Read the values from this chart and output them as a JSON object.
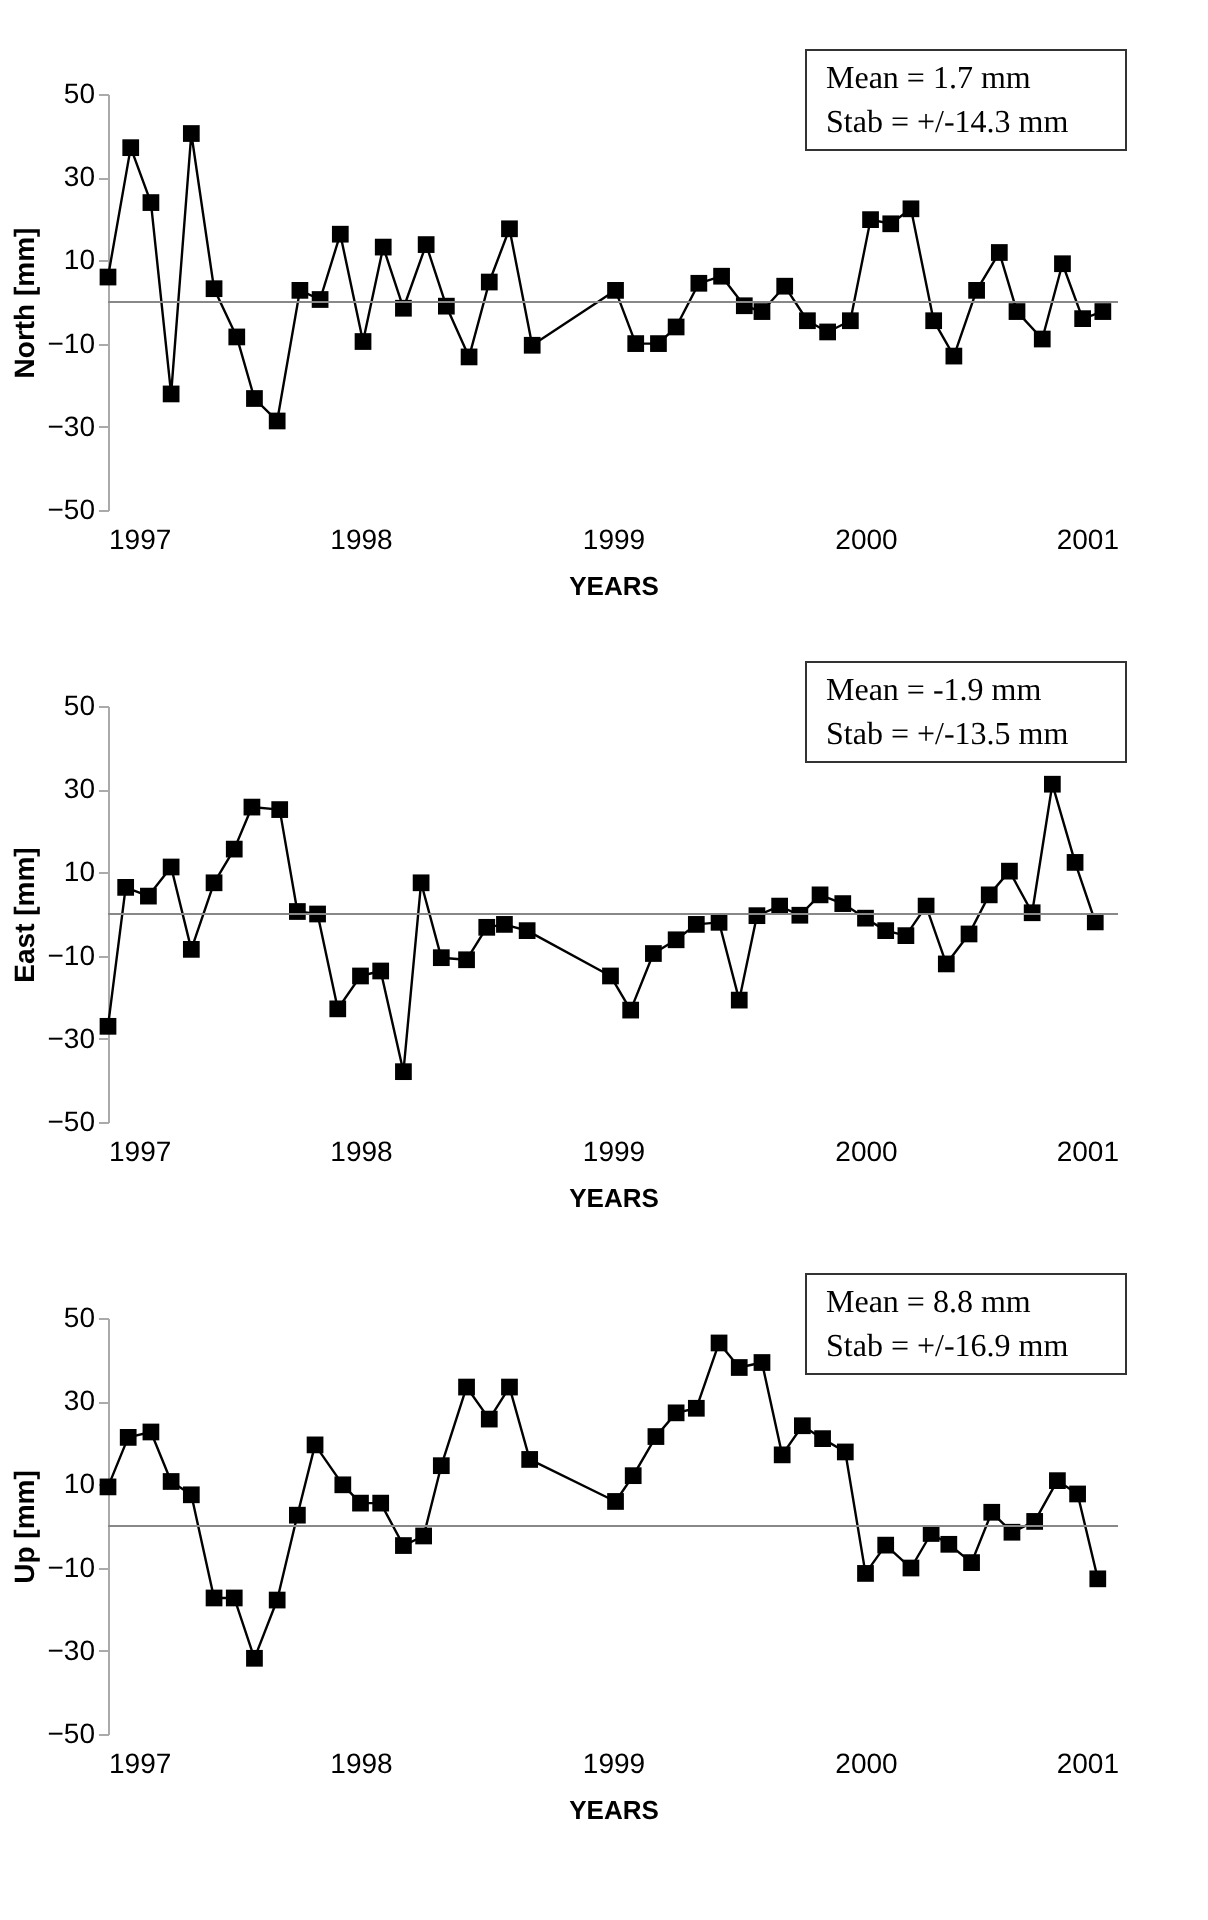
{
  "chart_data": [
    {
      "type": "line",
      "ylabel": "North [mm]",
      "xlabel": "YEARS",
      "xlim": [
        1997,
        2001
      ],
      "xticks": [
        1997,
        1998,
        1999,
        2000,
        2001
      ],
      "ylim": [
        -50,
        50
      ],
      "yticks": [
        -50,
        -30,
        -10,
        10,
        30,
        50
      ],
      "grid": false,
      "marker": "square",
      "line_style": "solid",
      "ref_lines": [
        {
          "axis": "y",
          "value": 0
        }
      ],
      "annotations": [
        "Mean = 1.7 mm",
        "Stab = +/-14.3 mm"
      ],
      "series": [
        {
          "color": "#000000",
          "x": [
            1997.0,
            1997.09,
            1997.17,
            1997.25,
            1997.33,
            1997.42,
            1997.51,
            1997.58,
            1997.67,
            1997.76,
            1997.84,
            1997.92,
            1998.01,
            1998.09,
            1998.17,
            1998.26,
            1998.34,
            1998.43,
            1998.51,
            1998.59,
            1998.68,
            1999.01,
            1999.09,
            1999.18,
            1999.25,
            1999.34,
            1999.43,
            1999.52,
            1999.59,
            1999.68,
            1999.77,
            1999.85,
            1999.94,
            2000.02,
            2000.1,
            2000.18,
            2000.27,
            2000.35,
            2000.44,
            2000.53,
            2000.6,
            2000.7,
            2000.78,
            2000.86,
            2000.94
          ],
          "values": [
            6.0,
            37.1,
            23.9,
            -22.1,
            40.5,
            3.2,
            -8.4,
            -23.2,
            -28.6,
            2.8,
            0.6,
            16.3,
            -9.5,
            13.2,
            -1.5,
            13.8,
            -1.0,
            -13.2,
            4.8,
            17.6,
            -10.4,
            2.8,
            -10.0,
            -10.0,
            -6.0,
            4.5,
            6.2,
            -0.9,
            -2.3,
            3.8,
            -4.5,
            -7.2,
            -4.5,
            19.8,
            18.8,
            22.4,
            -4.5,
            -13.0,
            2.8,
            11.9,
            -2.3,
            -8.9,
            9.2,
            -4.0,
            -2.3
          ]
        }
      ]
    },
    {
      "type": "line",
      "ylabel": "East [mm]",
      "xlabel": "YEARS",
      "xlim": [
        1997,
        2001
      ],
      "xticks": [
        1997,
        1998,
        1999,
        2000,
        2001
      ],
      "ylim": [
        -50,
        50
      ],
      "yticks": [
        -50,
        -30,
        -10,
        10,
        30,
        50
      ],
      "grid": false,
      "marker": "square",
      "line_style": "solid",
      "ref_lines": [
        {
          "axis": "y",
          "value": 0
        }
      ],
      "annotations": [
        "Mean = -1.9 mm",
        "Stab = +/-13.5 mm"
      ],
      "series": [
        {
          "color": "#000000",
          "x": [
            1997.0,
            1997.07,
            1997.16,
            1997.25,
            1997.33,
            1997.42,
            1997.5,
            1997.57,
            1997.68,
            1997.75,
            1997.83,
            1997.91,
            1998.0,
            1998.08,
            1998.17,
            1998.24,
            1998.32,
            1998.42,
            1998.5,
            1998.57,
            1998.66,
            1998.99,
            1999.07,
            1999.16,
            1999.25,
            1999.33,
            1999.42,
            1999.5,
            1999.57,
            1999.66,
            1999.74,
            1999.82,
            1999.91,
            2000.0,
            2000.08,
            2000.16,
            2000.24,
            2000.32,
            2000.41,
            2000.49,
            2000.57,
            2000.66,
            2000.74,
            2000.83,
            2000.91
          ],
          "values": [
            -27.0,
            6.4,
            4.3,
            11.3,
            -8.5,
            7.5,
            15.6,
            25.7,
            25.1,
            0.6,
            0.0,
            -22.8,
            -14.9,
            -13.7,
            -37.9,
            7.5,
            -10.5,
            -11.0,
            -3.2,
            -2.5,
            -4.0,
            -14.9,
            -23.1,
            -9.5,
            -6.2,
            -2.5,
            -2.0,
            -20.7,
            -0.4,
            1.9,
            -0.3,
            4.6,
            2.5,
            -1.0,
            -4.0,
            -5.2,
            1.9,
            -12.0,
            -4.8,
            4.6,
            10.3,
            0.3,
            31.2,
            12.4,
            -1.9
          ]
        }
      ]
    },
    {
      "type": "line",
      "ylabel": "Up [mm]",
      "xlabel": "YEARS",
      "xlim": [
        1997,
        2001
      ],
      "xticks": [
        1997,
        1998,
        1999,
        2000,
        2001
      ],
      "ylim": [
        -50,
        50
      ],
      "yticks": [
        -50,
        -30,
        -10,
        10,
        30,
        50
      ],
      "grid": false,
      "marker": "square",
      "line_style": "solid",
      "ref_lines": [
        {
          "axis": "y",
          "value": 0
        }
      ],
      "annotations": [
        "Mean = 8.8 mm",
        "Stab = +/-16.9 mm"
      ],
      "series": [
        {
          "color": "#000000",
          "x": [
            1997.0,
            1997.08,
            1997.17,
            1997.25,
            1997.33,
            1997.42,
            1997.5,
            1997.58,
            1997.67,
            1997.75,
            1997.82,
            1997.93,
            1998.0,
            1998.08,
            1998.17,
            1998.25,
            1998.32,
            1998.42,
            1998.51,
            1998.59,
            1998.67,
            1999.01,
            1999.08,
            1999.17,
            1999.25,
            1999.33,
            1999.42,
            1999.5,
            1999.59,
            1999.67,
            1999.75,
            1999.83,
            1999.92,
            2000.0,
            2000.08,
            2000.18,
            2000.26,
            2000.33,
            2000.42,
            2000.5,
            2000.58,
            2000.67,
            2000.76,
            2000.84,
            2000.92
          ],
          "values": [
            9.4,
            21.3,
            22.6,
            10.7,
            7.5,
            -17.3,
            -17.3,
            -31.8,
            -17.8,
            2.6,
            19.5,
            9.9,
            5.5,
            5.5,
            -4.7,
            -2.4,
            14.5,
            33.4,
            25.7,
            33.4,
            16.0,
            5.9,
            12.1,
            21.5,
            27.2,
            28.3,
            44.0,
            38.1,
            39.3,
            17.1,
            24.1,
            21.0,
            17.8,
            -11.4,
            -4.6,
            -10.1,
            -1.8,
            -4.4,
            -8.8,
            3.3,
            -1.5,
            1.1,
            10.9,
            7.7,
            -12.7
          ]
        }
      ]
    }
  ]
}
